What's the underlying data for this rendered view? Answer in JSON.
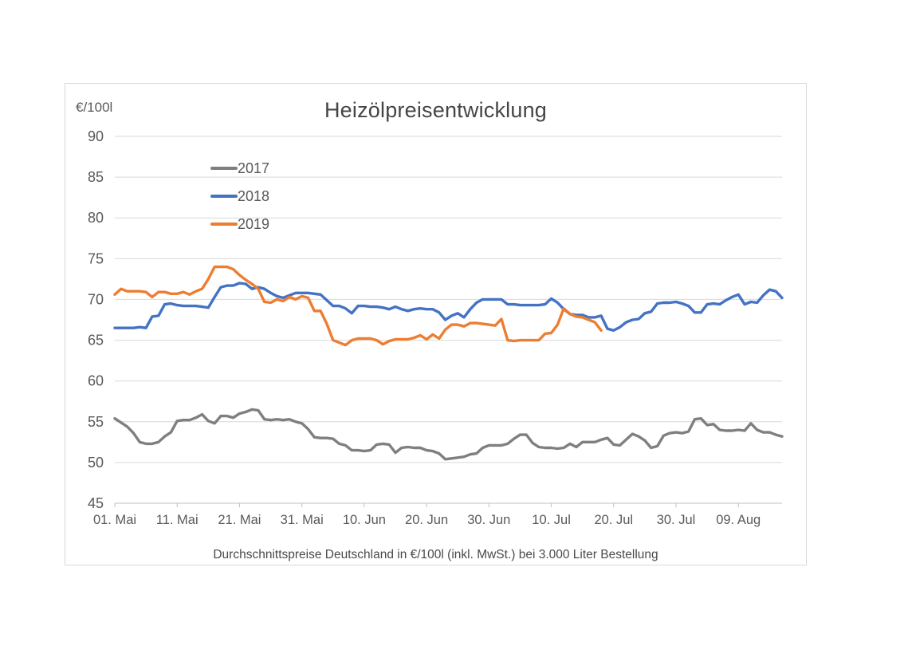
{
  "chart_data": {
    "type": "line",
    "title": "Heizölpreisentwicklung",
    "y_axis_title": "€/100l",
    "caption": "Durchschnittspreise Deutschland in €/100l (inkl. MwSt.) bei 3.000 Liter Bestellung",
    "ylim": [
      45,
      90
    ],
    "y_ticks": [
      45,
      50,
      55,
      60,
      65,
      70,
      75,
      80,
      85,
      90
    ],
    "x_tick_labels": [
      "01. Mai",
      "11. Mai",
      "21. Mai",
      "31. Mai",
      "10. Jun",
      "20. Jun",
      "30. Jun",
      "10. Jul",
      "20. Jul",
      "30. Jul",
      "09. Aug"
    ],
    "x_tick_days": [
      0,
      10,
      20,
      30,
      40,
      50,
      60,
      70,
      80,
      90,
      100
    ],
    "total_days": 107,
    "grid": true,
    "legend_position": "upper-left-inside",
    "colors": {
      "gridline": "#d9d9d9",
      "axis": "#bfbfbf",
      "tick_text": "#595959"
    },
    "x_unit": "day, starting 01. Mai",
    "series": [
      {
        "name": "2017",
        "color": "#7f7f7f",
        "start_day": 0,
        "values": [
          55.4,
          54.9,
          54.4,
          53.6,
          52.5,
          52.3,
          52.3,
          52.5,
          53.2,
          53.7,
          55.1,
          55.2,
          55.2,
          55.5,
          55.9,
          55.1,
          54.8,
          55.7,
          55.7,
          55.5,
          56.0,
          56.2,
          56.5,
          56.4,
          55.3,
          55.2,
          55.3,
          55.2,
          55.3,
          55.0,
          54.8,
          54.1,
          53.1,
          53.0,
          53.0,
          52.9,
          52.3,
          52.1,
          51.5,
          51.5,
          51.4,
          51.5,
          52.2,
          52.3,
          52.2,
          51.2,
          51.8,
          51.9,
          51.8,
          51.8,
          51.5,
          51.4,
          51.1,
          50.4,
          50.5,
          50.6,
          50.7,
          51.0,
          51.1,
          51.8,
          52.1,
          52.1,
          52.1,
          52.3,
          52.9,
          53.4,
          53.4,
          52.4,
          51.9,
          51.8,
          51.8,
          51.7,
          51.8,
          52.3,
          51.9,
          52.5,
          52.5,
          52.5,
          52.8,
          53.0,
          52.2,
          52.1,
          52.8,
          53.5,
          53.2,
          52.7,
          51.8,
          52.0,
          53.3,
          53.6,
          53.7,
          53.6,
          53.8,
          55.3,
          55.4,
          54.6,
          54.7,
          54.0,
          53.9,
          53.9,
          54.0,
          53.9,
          54.8,
          54.0,
          53.7,
          53.7,
          53.4,
          53.2
        ]
      },
      {
        "name": "2018",
        "color": "#4472c4",
        "start_day": 0,
        "values": [
          66.5,
          66.5,
          66.5,
          66.5,
          66.6,
          66.5,
          67.9,
          68.0,
          69.4,
          69.5,
          69.3,
          69.2,
          69.2,
          69.2,
          69.1,
          69.0,
          70.3,
          71.5,
          71.7,
          71.7,
          72.0,
          71.9,
          71.3,
          71.5,
          71.3,
          70.8,
          70.4,
          70.2,
          70.5,
          70.8,
          70.8,
          70.8,
          70.7,
          70.6,
          69.9,
          69.2,
          69.2,
          68.9,
          68.3,
          69.2,
          69.2,
          69.1,
          69.1,
          69.0,
          68.8,
          69.1,
          68.8,
          68.6,
          68.8,
          68.9,
          68.8,
          68.8,
          68.4,
          67.5,
          68.0,
          68.3,
          67.8,
          68.8,
          69.6,
          70.0,
          70.0,
          70.0,
          70.0,
          69.4,
          69.4,
          69.3,
          69.3,
          69.3,
          69.3,
          69.4,
          70.1,
          69.6,
          68.8,
          68.2,
          68.1,
          68.1,
          67.8,
          67.8,
          68.0,
          66.4,
          66.2,
          66.6,
          67.2,
          67.5,
          67.6,
          68.3,
          68.5,
          69.5,
          69.6,
          69.6,
          69.7,
          69.5,
          69.2,
          68.4,
          68.4,
          69.4,
          69.5,
          69.4,
          69.9,
          70.3,
          70.6,
          69.4,
          69.7,
          69.6,
          70.5,
          71.2,
          71.0,
          70.2
        ]
      },
      {
        "name": "2019",
        "color": "#ed7d31",
        "start_day": 0,
        "values": [
          70.6,
          71.3,
          71.0,
          71.0,
          71.0,
          70.9,
          70.3,
          70.9,
          70.9,
          70.7,
          70.7,
          70.9,
          70.6,
          71.0,
          71.3,
          72.5,
          74.0,
          74.0,
          74.0,
          73.7,
          73.0,
          72.4,
          71.9,
          71.3,
          69.7,
          69.6,
          70.0,
          69.8,
          70.3,
          70.0,
          70.4,
          70.2,
          68.6,
          68.6,
          67.0,
          65.0,
          64.7,
          64.4,
          65.0,
          65.2,
          65.2,
          65.2,
          65.0,
          64.5,
          64.9,
          65.1,
          65.1,
          65.1,
          65.3,
          65.6,
          65.1,
          65.7,
          65.2,
          66.3,
          66.9,
          66.9,
          66.7,
          67.1,
          67.1,
          67.0,
          66.9,
          66.8,
          67.6,
          65.0,
          64.9,
          65.0,
          65.0,
          65.0,
          65.0,
          65.8,
          65.9,
          66.9,
          68.9,
          68.2,
          67.9,
          67.8,
          67.5,
          67.2,
          66.2
        ]
      }
    ]
  }
}
